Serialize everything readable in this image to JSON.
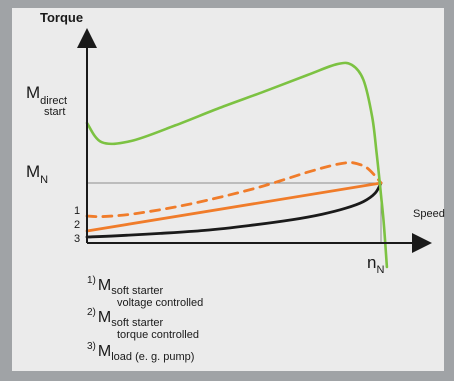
{
  "chart_data": {
    "type": "line",
    "ylabel": "Torque",
    "xlabel": "Speed",
    "y_tick_labels": [
      {
        "main": "M",
        "sub": "direct start"
      },
      {
        "main": "M",
        "sub": "N"
      }
    ],
    "x_tick_labels": [
      {
        "main": "n",
        "sub": "N"
      }
    ],
    "y_left_markers": [
      "1",
      "2",
      "3"
    ],
    "series": [
      {
        "label": "direct",
        "color": "#7cc242",
        "style": "solid",
        "x": [
          0.0,
          0.05,
          0.15,
          0.3,
          0.45,
          0.6,
          0.75,
          0.85,
          0.9,
          0.94,
          0.97,
          0.985,
          1.0,
          1.01,
          1.02
        ],
        "y": [
          2.0,
          1.68,
          1.7,
          1.96,
          2.25,
          2.52,
          2.8,
          2.98,
          2.97,
          2.72,
          2.1,
          1.5,
          0.8,
          0.3,
          -0.4
        ]
      },
      {
        "label": "1",
        "color": "#f07c2a",
        "style": "dashed",
        "x": [
          0.0,
          0.05,
          0.15,
          0.3,
          0.45,
          0.6,
          0.75,
          0.84,
          0.89,
          0.92,
          0.95,
          0.98,
          1.0
        ],
        "y": [
          0.45,
          0.44,
          0.48,
          0.6,
          0.76,
          0.95,
          1.18,
          1.3,
          1.34,
          1.32,
          1.26,
          1.12,
          1.0
        ]
      },
      {
        "label": "2",
        "color": "#f07c2a",
        "style": "solid",
        "x": [
          0.0,
          1.0
        ],
        "y": [
          0.2,
          1.0
        ]
      },
      {
        "label": "3",
        "color": "#1a1a1a",
        "style": "solid",
        "x": [
          0.0,
          0.1,
          0.25,
          0.4,
          0.55,
          0.7,
          0.8,
          0.88,
          0.94,
          0.98,
          1.0
        ],
        "y": [
          0.1,
          0.12,
          0.16,
          0.21,
          0.29,
          0.39,
          0.48,
          0.58,
          0.69,
          0.83,
          1.0
        ]
      }
    ],
    "reference_lines": {
      "M_N": 1.0,
      "n_N": 1.0
    },
    "ylim": [
      0,
      3.0
    ],
    "xlim": [
      0,
      1.15
    ]
  },
  "legend": [
    {
      "num": "1)",
      "main": "M",
      "sub1": "soft starter",
      "sub2": "voltage controlled"
    },
    {
      "num": "2)",
      "main": "M",
      "sub1": "soft starter",
      "sub2": "torque controlled"
    },
    {
      "num": "3)",
      "main": "M",
      "sub1": "load (e. g. pump)",
      "sub2": ""
    }
  ]
}
